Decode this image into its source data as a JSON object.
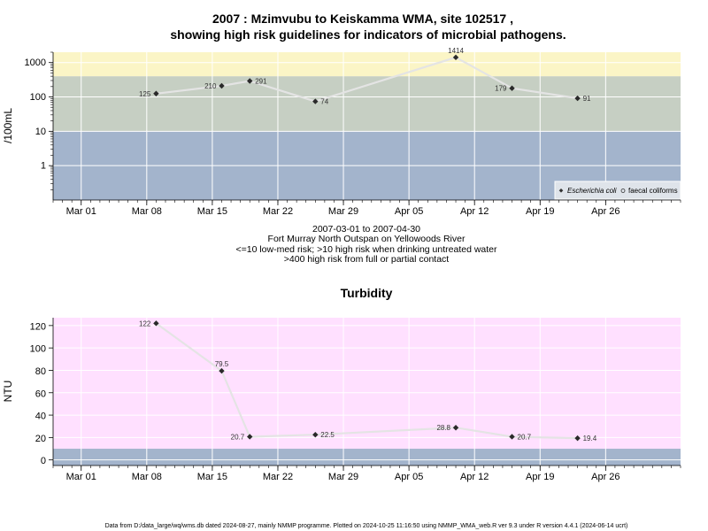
{
  "chart_data": [
    {
      "type": "scatter",
      "title_line1": "2007 : Mzimvubu to Keiskamma WMA, site 102517 ,",
      "title_line2": "showing high risk guidelines for indicators of microbial pathogens.",
      "ylabel": "/100mL",
      "yscale": "log",
      "ylim": [
        0.1,
        2000
      ],
      "yticks": [
        {
          "value": 1,
          "label": "1"
        },
        {
          "value": 10,
          "label": "10"
        },
        {
          "value": 100,
          "label": "100"
        },
        {
          "value": 1000,
          "label": "1000"
        }
      ],
      "bands": [
        {
          "from": 0.1,
          "to": 10,
          "color": "#a3b4cc"
        },
        {
          "from": 10,
          "to": 400,
          "color": "#c6cfc3"
        },
        {
          "from": 400,
          "to": 2000,
          "color": "#fbf5c6"
        }
      ],
      "series": [
        {
          "name": "Escherichia coli",
          "marker": "diamond",
          "points": [
            {
              "date": "2007-03-09",
              "value": 125,
              "label": "125",
              "label_side": "left"
            },
            {
              "date": "2007-03-16",
              "value": 210,
              "label": "210",
              "label_side": "left"
            },
            {
              "date": "2007-03-19",
              "value": 291,
              "label": "291",
              "label_side": "right"
            },
            {
              "date": "2007-03-26",
              "value": 74,
              "label": "74",
              "label_side": "right"
            },
            {
              "date": "2007-04-10",
              "value": 1414,
              "label": "1414",
              "label_side": "top"
            },
            {
              "date": "2007-04-16",
              "value": 179,
              "label": "179",
              "label_side": "left"
            },
            {
              "date": "2007-04-23",
              "value": 91,
              "label": "91",
              "label_side": "right"
            }
          ]
        }
      ],
      "legend": {
        "placement": "bottom-right",
        "entries": [
          {
            "label": "Escherichia coli",
            "marker": "diamond",
            "italic": true
          },
          {
            "label": "faecal coliforms",
            "marker": "circle-open",
            "italic": false
          }
        ]
      },
      "caption_lines": [
        "2007-03-01 to 2007-04-30",
        "Fort Murray North Outspan on Yellowoods River",
        "<=10 low-med risk; >10 high risk when drinking untreated water",
        ">400 high risk from full or partial contact"
      ]
    },
    {
      "type": "scatter",
      "title": "Turbidity",
      "ylabel": "NTU",
      "ylim": [
        -5,
        127
      ],
      "yticks": [
        {
          "value": 0,
          "label": "0"
        },
        {
          "value": 20,
          "label": "20"
        },
        {
          "value": 40,
          "label": "40"
        },
        {
          "value": 60,
          "label": "60"
        },
        {
          "value": 80,
          "label": "80"
        },
        {
          "value": 100,
          "label": "100"
        },
        {
          "value": 120,
          "label": "120"
        }
      ],
      "bands": [
        {
          "from": -5,
          "to": 10,
          "color": "#a3b4cc"
        },
        {
          "from": 10,
          "to": 127,
          "color": "#ffe0ff"
        }
      ],
      "series": [
        {
          "name": "Turbidity",
          "marker": "diamond",
          "points": [
            {
              "date": "2007-03-09",
              "value": 122,
              "label": "122",
              "label_side": "left"
            },
            {
              "date": "2007-03-16",
              "value": 79.5,
              "label": "79.5",
              "label_side": "top"
            },
            {
              "date": "2007-03-19",
              "value": 20.7,
              "label": "20.7",
              "label_side": "left"
            },
            {
              "date": "2007-03-26",
              "value": 22.5,
              "label": "22.5",
              "label_side": "right"
            },
            {
              "date": "2007-04-10",
              "value": 28.8,
              "label": "28.8",
              "label_side": "left"
            },
            {
              "date": "2007-04-16",
              "value": 20.7,
              "label": "20.7",
              "label_side": "right"
            },
            {
              "date": "2007-04-23",
              "value": 19.4,
              "label": "19.4",
              "label_side": "right"
            }
          ]
        }
      ]
    }
  ],
  "x_axis": {
    "xlim": [
      "2007-02-26",
      "2007-05-04"
    ],
    "ticks": [
      {
        "date": "2007-03-01",
        "label": "Mar 01"
      },
      {
        "date": "2007-03-08",
        "label": "Mar 08"
      },
      {
        "date": "2007-03-15",
        "label": "Mar 15"
      },
      {
        "date": "2007-03-22",
        "label": "Mar 22"
      },
      {
        "date": "2007-03-29",
        "label": "Mar 29"
      },
      {
        "date": "2007-04-05",
        "label": "Apr 05"
      },
      {
        "date": "2007-04-12",
        "label": "Apr 12"
      },
      {
        "date": "2007-04-19",
        "label": "Apr 19"
      },
      {
        "date": "2007-04-26",
        "label": "Apr 26"
      }
    ]
  },
  "grid": true,
  "footer": "Data from D:/data_large/wq/wms.db dated 2024-08-27, mainly NMMP programme. Plotted on 2024-10-25 11:16:50 using NMMP_WMA_web.R ver 9.3 under R version 4.4.1 (2024-06-14 ucrt)"
}
